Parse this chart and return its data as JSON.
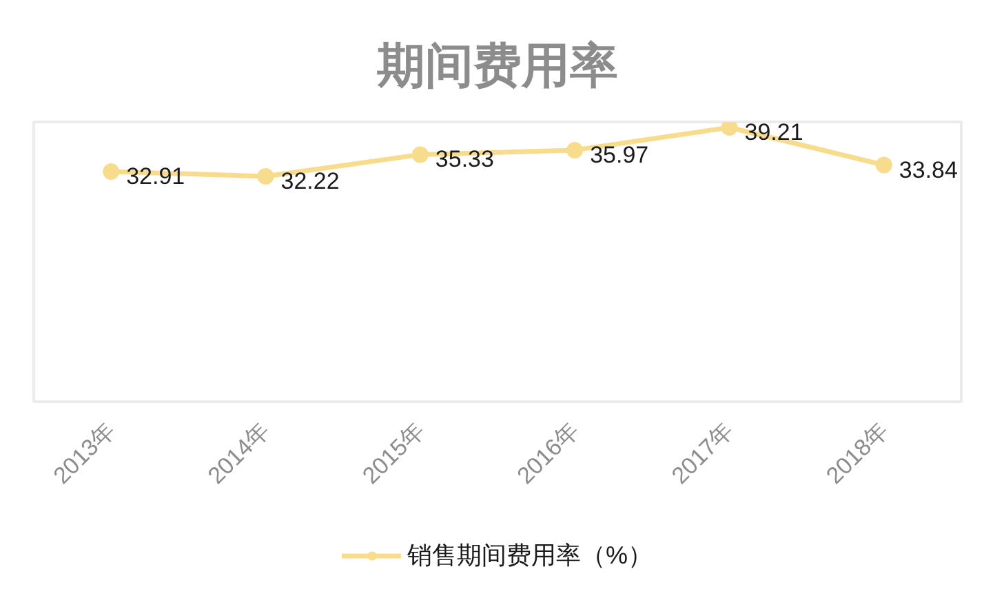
{
  "chart_data": {
    "type": "line",
    "title": "期间费用率",
    "categories": [
      "2013年",
      "2014年",
      "2015年",
      "2016年",
      "2017年",
      "2018年"
    ],
    "series": [
      {
        "name": "销售期间费用率（%）",
        "color": "#f8dc8e",
        "values": [
          32.91,
          32.22,
          35.33,
          35.97,
          39.21,
          33.84
        ]
      }
    ],
    "ylim": [
      0,
      40
    ],
    "tick_labels": "x",
    "data_labels": true,
    "legend": "bottom",
    "marker": "circle",
    "line_style": "solid"
  }
}
